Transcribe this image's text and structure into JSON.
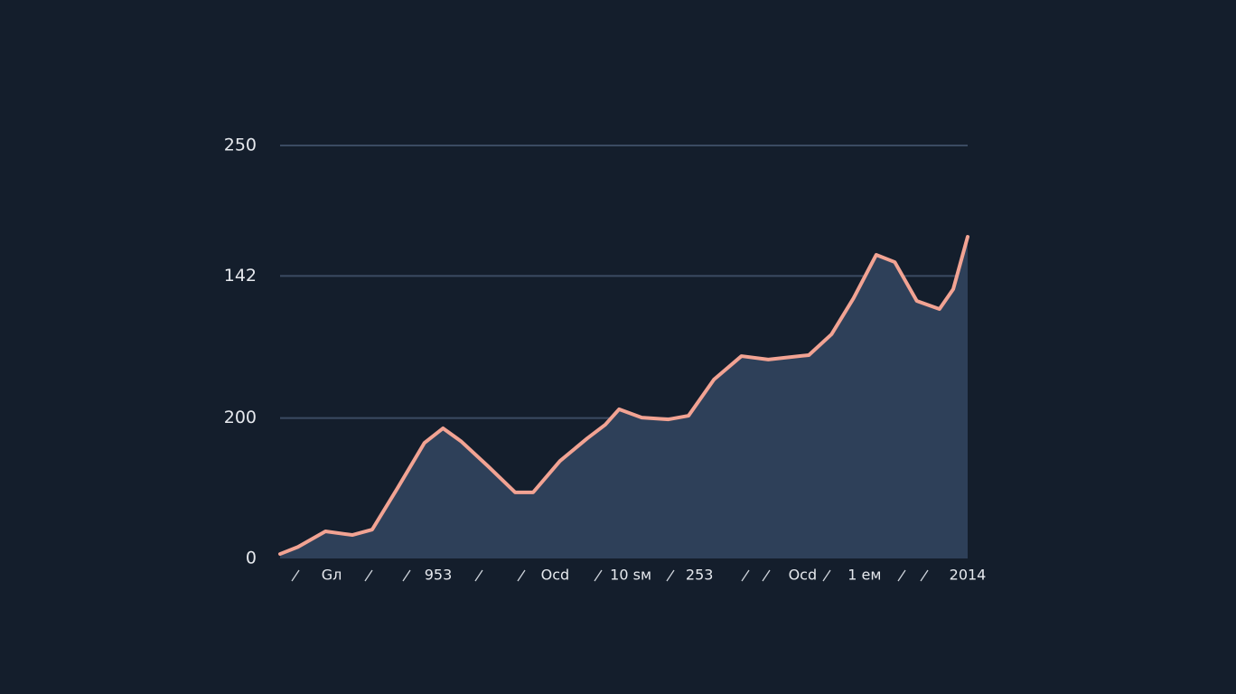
{
  "chart_data": {
    "type": "area",
    "x": [
      0,
      2.6,
      6.6,
      10.5,
      13.4,
      17.1,
      21,
      23.7,
      26.3,
      30.2,
      34.2,
      36.8,
      40.7,
      44.7,
      47.3,
      49.3,
      52.6,
      56.5,
      59.4,
      63.1,
      67.1,
      71,
      76.9,
      80.2,
      83.4,
      86.7,
      89.4,
      92.6,
      95.9,
      97.9,
      100
    ],
    "series": [
      {
        "color": "#f2a393",
        "fill": "#2e4059",
        "values": [
          2.7,
          7,
          16.4,
          14.2,
          17.5,
          42.7,
          70,
          78.8,
          71,
          56,
          40,
          40,
          59,
          72.8,
          81,
          90.3,
          85.3,
          84.2,
          86.4,
          108.3,
          122.5,
          120.4,
          123.1,
          135.7,
          157.5,
          183.8,
          179.4,
          155.9,
          151,
          163,
          194.7
        ]
      }
    ],
    "xlim": [
      0,
      100
    ],
    "xticks": [
      {
        "value": 7.5,
        "label": "Gл"
      },
      {
        "value": 23,
        "label": "953"
      },
      {
        "value": 40,
        "label": "Ocd"
      },
      {
        "value": 51,
        "label": "10 sм"
      },
      {
        "value": 61,
        "label": "253"
      },
      {
        "value": 76,
        "label": "Ocd"
      },
      {
        "value": 85,
        "label": "1 ем"
      },
      {
        "value": 100,
        "label": "2014"
      }
    ],
    "ylim": [
      0,
      250
    ],
    "yticks": [
      0,
      {
        "value": 85,
        "label": "200"
      },
      {
        "value": 171,
        "label": "142"
      },
      250
    ],
    "grid": true
  }
}
